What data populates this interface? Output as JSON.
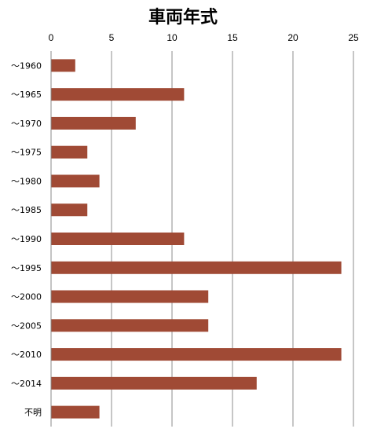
{
  "chart_data": {
    "type": "bar",
    "orientation": "horizontal",
    "title": "車両年式",
    "categories": [
      "～1960",
      "～1965",
      "～1970",
      "～1975",
      "～1980",
      "～1985",
      "～1990",
      "～1995",
      "～2000",
      "～2005",
      "～2010",
      "～2014",
      "不明"
    ],
    "values": [
      2,
      11,
      7,
      3,
      4,
      3,
      11,
      24,
      13,
      13,
      24,
      17,
      4
    ],
    "xlim": [
      0,
      25
    ],
    "xticks": [
      0,
      5,
      10,
      15,
      20,
      25
    ],
    "grid": "vertical",
    "bar_color": "#a04a35",
    "axis_position": "top"
  }
}
